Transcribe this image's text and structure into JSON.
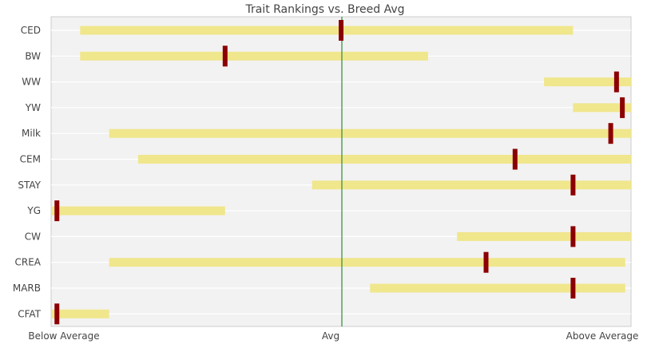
{
  "chart_data": {
    "type": "bar",
    "title": "Trait Rankings vs. Breed Avg",
    "x_tick_labels": [
      "Below Average",
      "Avg",
      "Above Average"
    ],
    "xlim": [
      -100,
      100
    ],
    "categories": [
      "CED",
      "BW",
      "WW",
      "YW",
      "Milk",
      "CEM",
      "STAY",
      "YG",
      "CW",
      "CREA",
      "MARB",
      "CFAT"
    ],
    "ranges": [
      [
        -90,
        80
      ],
      [
        -90,
        30
      ],
      [
        70,
        100
      ],
      [
        80,
        100
      ],
      [
        -80,
        100
      ],
      [
        -70,
        100
      ],
      [
        -10,
        100
      ],
      [
        -100,
        -40
      ],
      [
        40,
        100
      ],
      [
        -80,
        98
      ],
      [
        10,
        98
      ],
      [
        -100,
        -80
      ]
    ],
    "markers": [
      0,
      -40,
      95,
      97,
      93,
      60,
      80,
      -98,
      80,
      50,
      80,
      -98
    ],
    "grid": true,
    "colors": {
      "range_bar": "#f0e68c",
      "marker": "#8b0000",
      "avg_line": "#2e8b3a",
      "plot_bg": "#f2f2f2"
    }
  }
}
